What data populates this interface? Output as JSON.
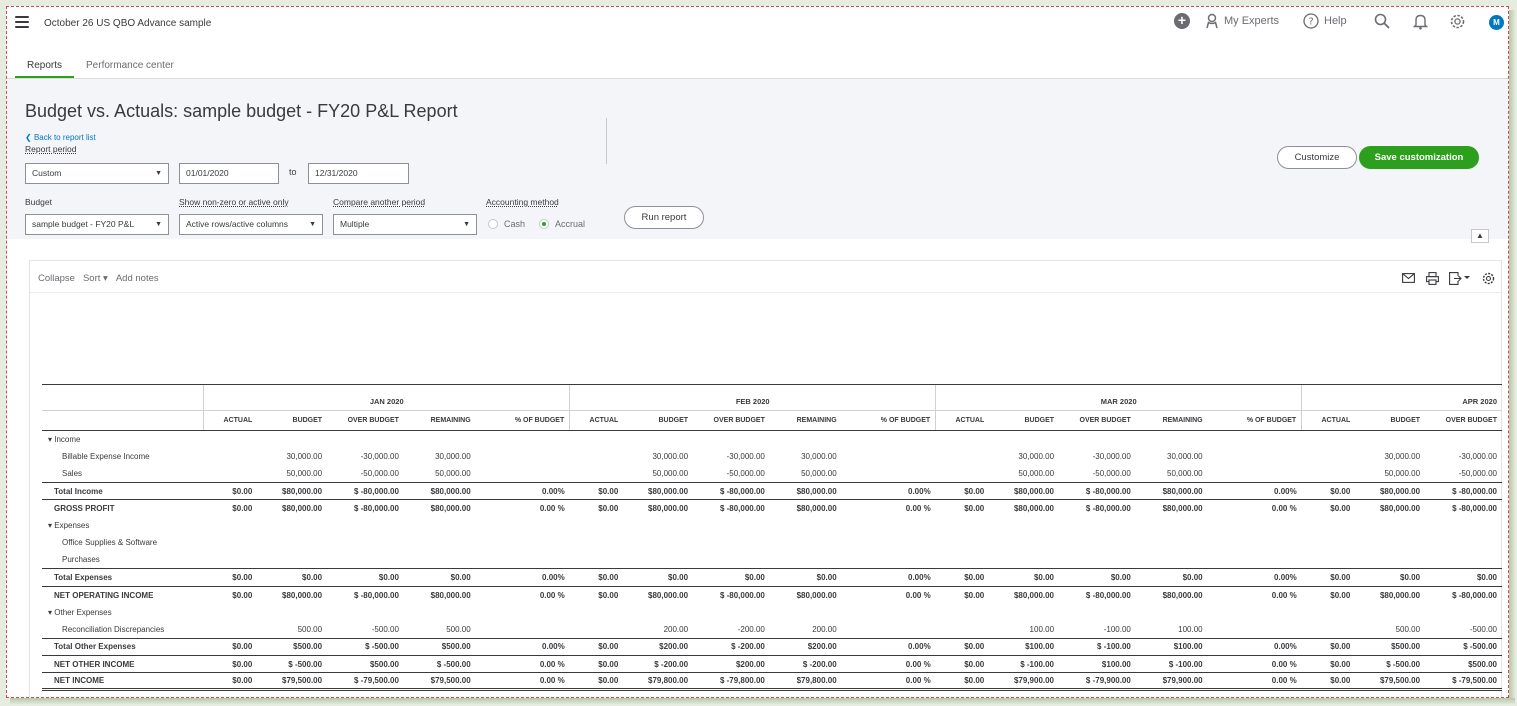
{
  "topbar": {
    "company": "October 26 US QBO Advance sample",
    "my_experts": "My Experts",
    "help": "Help",
    "avatar_initial": "M"
  },
  "tabs": [
    {
      "label": "Reports",
      "active": true
    },
    {
      "label": "Performance center",
      "active": false
    }
  ],
  "header": {
    "title": "Budget vs. Actuals: sample budget - FY20 P&L Report",
    "back_link": "Back to report list",
    "report_period_label": "Report period",
    "report_period_value": "Custom",
    "date_from": "01/01/2020",
    "to_label": "to",
    "date_to": "12/31/2020",
    "budget_label": "Budget",
    "budget_value": "sample budget - FY20 P&L",
    "nonzero_label": "Show non-zero or active only",
    "nonzero_value": "Active rows/active columns",
    "compare_label": "Compare another period",
    "compare_value": "Multiple",
    "accounting_label": "Accounting method",
    "cash_label": "Cash",
    "accrual_label": "Accrual",
    "accounting_selected": "Accrual",
    "run_report": "Run report",
    "customize": "Customize",
    "save_customization": "Save customization"
  },
  "report_toolbar": {
    "collapse": "Collapse",
    "sort": "Sort",
    "add_notes": "Add notes"
  },
  "table": {
    "months": [
      "JAN 2020",
      "FEB 2020",
      "MAR 2020",
      "APR 2020"
    ],
    "columns": [
      "ACTUAL",
      "BUDGET",
      "OVER BUDGET",
      "REMAINING",
      "% OF BUDGET"
    ],
    "rows": [
      {
        "type": "sec",
        "label": "Income",
        "cells": [
          "",
          "",
          "",
          "",
          "",
          "",
          "",
          "",
          "",
          "",
          "",
          "",
          "",
          "",
          "",
          "",
          "",
          ""
        ]
      },
      {
        "type": "item",
        "label": "Billable Expense Income",
        "cells": [
          "",
          "30,000.00",
          "-30,000.00",
          "30,000.00",
          "",
          "",
          "30,000.00",
          "-30,000.00",
          "30,000.00",
          "",
          "",
          "30,000.00",
          "-30,000.00",
          "30,000.00",
          "",
          "",
          "30,000.00",
          "-30,000.00"
        ]
      },
      {
        "type": "item",
        "label": "Sales",
        "cells": [
          "",
          "50,000.00",
          "-50,000.00",
          "50,000.00",
          "",
          "",
          "50,000.00",
          "-50,000.00",
          "50,000.00",
          "",
          "",
          "50,000.00",
          "-50,000.00",
          "50,000.00",
          "",
          "",
          "50,000.00",
          "-50,000.00"
        ]
      },
      {
        "type": "tot",
        "label": "Total Income",
        "cells": [
          "$0.00",
          "$80,000.00",
          "$ -80,000.00",
          "$80,000.00",
          "0.00%",
          "$0.00",
          "$80,000.00",
          "$ -80,000.00",
          "$80,000.00",
          "0.00%",
          "$0.00",
          "$80,000.00",
          "$ -80,000.00",
          "$80,000.00",
          "0.00%",
          "$0.00",
          "$80,000.00",
          "$ -80,000.00"
        ]
      },
      {
        "type": "tot",
        "label": "GROSS PROFIT",
        "cells": [
          "$0.00",
          "$80,000.00",
          "$ -80,000.00",
          "$80,000.00",
          "0.00 %",
          "$0.00",
          "$80,000.00",
          "$ -80,000.00",
          "$80,000.00",
          "0.00 %",
          "$0.00",
          "$80,000.00",
          "$ -80,000.00",
          "$80,000.00",
          "0.00 %",
          "$0.00",
          "$80,000.00",
          "$ -80,000.00"
        ]
      },
      {
        "type": "sec",
        "label": "Expenses",
        "cells": [
          "",
          "",
          "",
          "",
          "",
          "",
          "",
          "",
          "",
          "",
          "",
          "",
          "",
          "",
          "",
          "",
          "",
          ""
        ]
      },
      {
        "type": "item",
        "label": "Office Supplies & Software",
        "cells": [
          "",
          "",
          "",
          "",
          "",
          "",
          "",
          "",
          "",
          "",
          "",
          "",
          "",
          "",
          "",
          "",
          "",
          ""
        ]
      },
      {
        "type": "item",
        "label": "Purchases",
        "cells": [
          "",
          "",
          "",
          "",
          "",
          "",
          "",
          "",
          "",
          "",
          "",
          "",
          "",
          "",
          "",
          "",
          "",
          ""
        ]
      },
      {
        "type": "tot",
        "label": "Total Expenses",
        "cells": [
          "$0.00",
          "$0.00",
          "$0.00",
          "$0.00",
          "0.00%",
          "$0.00",
          "$0.00",
          "$0.00",
          "$0.00",
          "0.00%",
          "$0.00",
          "$0.00",
          "$0.00",
          "$0.00",
          "0.00%",
          "$0.00",
          "$0.00",
          "$0.00"
        ]
      },
      {
        "type": "tot",
        "label": "NET OPERATING INCOME",
        "cells": [
          "$0.00",
          "$80,000.00",
          "$ -80,000.00",
          "$80,000.00",
          "0.00 %",
          "$0.00",
          "$80,000.00",
          "$ -80,000.00",
          "$80,000.00",
          "0.00 %",
          "$0.00",
          "$80,000.00",
          "$ -80,000.00",
          "$80,000.00",
          "0.00 %",
          "$0.00",
          "$80,000.00",
          "$ -80,000.00"
        ]
      },
      {
        "type": "sec",
        "label": "Other Expenses",
        "cells": [
          "",
          "",
          "",
          "",
          "",
          "",
          "",
          "",
          "",
          "",
          "",
          "",
          "",
          "",
          "",
          "",
          "",
          ""
        ]
      },
      {
        "type": "item",
        "label": "Reconciliation Discrepancies",
        "cells": [
          "",
          "500.00",
          "-500.00",
          "500.00",
          "",
          "",
          "200.00",
          "-200.00",
          "200.00",
          "",
          "",
          "100.00",
          "-100.00",
          "100.00",
          "",
          "",
          "500.00",
          "-500.00"
        ]
      },
      {
        "type": "tot",
        "label": "Total Other Expenses",
        "cells": [
          "$0.00",
          "$500.00",
          "$ -500.00",
          "$500.00",
          "0.00%",
          "$0.00",
          "$200.00",
          "$ -200.00",
          "$200.00",
          "0.00%",
          "$0.00",
          "$100.00",
          "$ -100.00",
          "$100.00",
          "0.00%",
          "$0.00",
          "$500.00",
          "$ -500.00"
        ]
      },
      {
        "type": "tot",
        "label": "NET OTHER INCOME",
        "cells": [
          "$0.00",
          "$ -500.00",
          "$500.00",
          "$ -500.00",
          "0.00 %",
          "$0.00",
          "$ -200.00",
          "$200.00",
          "$ -200.00",
          "0.00 %",
          "$0.00",
          "$ -100.00",
          "$100.00",
          "$ -100.00",
          "0.00 %",
          "$0.00",
          "$ -500.00",
          "$500.00"
        ]
      },
      {
        "type": "tot final",
        "label": "NET INCOME",
        "cells": [
          "$0.00",
          "$79,500.00",
          "$ -79,500.00",
          "$79,500.00",
          "0.00 %",
          "$0.00",
          "$79,800.00",
          "$ -79,800.00",
          "$79,800.00",
          "0.00 %",
          "$0.00",
          "$79,900.00",
          "$ -79,900.00",
          "$79,900.00",
          "0.00 %",
          "$0.00",
          "$79,500.00",
          "$ -79,500.00"
        ]
      }
    ]
  },
  "colors": {
    "accent_green": "#2ca01c",
    "link_blue": "#0077c5",
    "text_dark": "#393a3d"
  }
}
